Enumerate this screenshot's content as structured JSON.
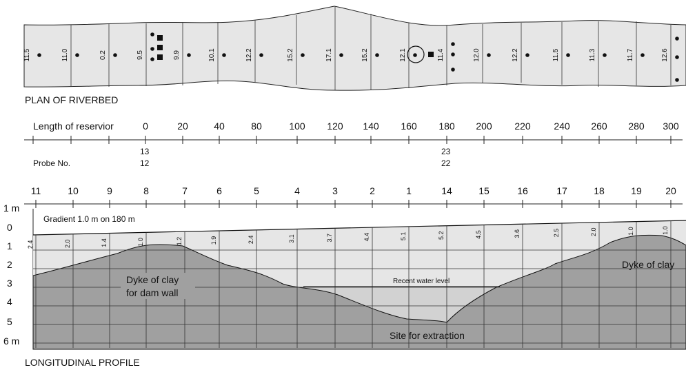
{
  "plan": {
    "caption": "PLAN OF RIVERBED",
    "depth_labels": [
      "11.5",
      "11.0",
      "0.2",
      "9.5",
      "9.9",
      "10.1",
      "12.2",
      "15.2",
      "17.1",
      "15.2",
      "12.1",
      "11.4",
      "12.0",
      "12.2",
      "11.5",
      "11.3",
      "11.7",
      "12.6"
    ]
  },
  "length_axis": {
    "label": "Length of reservior",
    "ticks": [
      "0",
      "20",
      "40",
      "80",
      "100",
      "120",
      "140",
      "160",
      "180",
      "200",
      "220",
      "240",
      "260",
      "280",
      "300"
    ]
  },
  "probes": {
    "label": "Probe No.",
    "group_a": [
      "13",
      "12"
    ],
    "group_b": [
      "23",
      "22"
    ]
  },
  "profile": {
    "caption": "LONGITUDINAL PROFILE",
    "station_numbers": [
      "11",
      "10",
      "9",
      "8",
      "7",
      "6",
      "5",
      "4",
      "3",
      "2",
      "1",
      "14",
      "15",
      "16",
      "17",
      "18",
      "19",
      "20"
    ],
    "depth_axis": [
      "1 m",
      "0",
      "1",
      "2",
      "3",
      "4",
      "5",
      "6 m"
    ],
    "gradient_label": "Gradient 1.0 m on 180 m",
    "depth_values": [
      "2.4",
      "2.0",
      "1.4",
      "1.0",
      "1.2",
      "1.9",
      "2.4",
      "3.1",
      "3.7",
      "4.4",
      "5.1",
      "5.2",
      "4.5",
      "3.6",
      "2.5",
      "2.0",
      "1.0",
      "1.0"
    ],
    "dyke_left_line1": "Dyke of clay",
    "dyke_left_line2": "for dam wall",
    "dyke_right": "Dyke of clay",
    "water_level_label": "Recent water level",
    "extraction_label": "Site for extraction"
  },
  "colors": {
    "river_fill": "#e6e6e6",
    "water_fill": "#d4d4d4",
    "ground_fill": "#a0a0a0",
    "line": "#222222"
  }
}
